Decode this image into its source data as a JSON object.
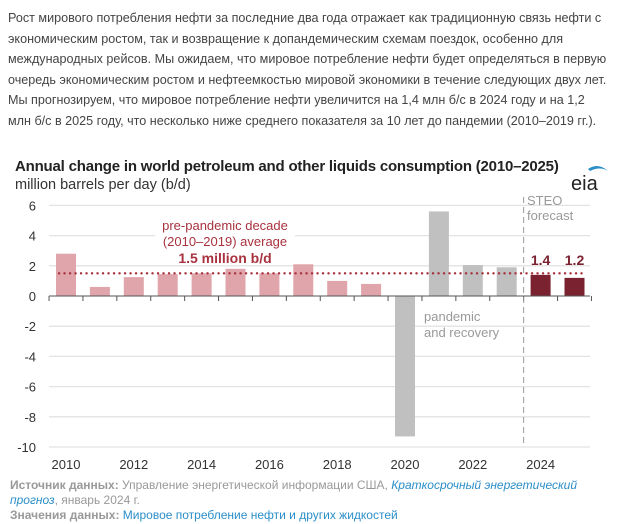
{
  "intro_text": "Рост мирового потребления нефти за последние два года отражает как традиционную связь нефти с экономическим ростом, так и возвращение к допандемическим схемам поездок, особенно для международных рейсов. Мы ожидаем, что мировое потребление нефти будет определяться в первую очередь экономическим ростом и нефтеемкостью мировой экономики в течение следующих двух лет. Мы прогнозируем, что мировое потребление нефти увеличится на 1,4 млн б/с в 2024 году и на 1,2 млн б/с в 2025 году, что несколько ниже среднего показателя за 10 лет до пандемии (2010–2019 гг.).",
  "logo_text": "eia",
  "chart_data": {
    "type": "bar",
    "title": "Annual change in world petroleum and other liquids consumption (2010–2025)",
    "ylabel": "million barrels per day (b/d)",
    "categories": [
      "2010",
      "2011",
      "2012",
      "2013",
      "2014",
      "2015",
      "2016",
      "2017",
      "2018",
      "2019",
      "2020",
      "2021",
      "2022",
      "2023",
      "2024",
      "2025"
    ],
    "values": [
      2.8,
      0.6,
      1.25,
      1.45,
      1.5,
      1.8,
      1.5,
      2.1,
      1.0,
      0.8,
      -9.3,
      5.6,
      2.05,
      1.9,
      1.4,
      1.2
    ],
    "groups": [
      "pre",
      "pre",
      "pre",
      "pre",
      "pre",
      "pre",
      "pre",
      "pre",
      "pre",
      "pre",
      "pandemic",
      "pandemic",
      "pandemic",
      "pandemic",
      "forecast",
      "forecast"
    ],
    "colors": {
      "pre": "#e0a4ab",
      "pandemic": "#c0c0c0",
      "forecast": "#7b2230",
      "average": "#a8323e",
      "annotation_gray": "#999999"
    },
    "ylim": [
      -10,
      6
    ],
    "yticks": [
      "6",
      "4",
      "2",
      "0",
      "-2",
      "-4",
      "-6",
      "-8",
      "-10"
    ],
    "xtick_labels": [
      "2010",
      "2012",
      "2014",
      "2016",
      "2018",
      "2020",
      "2022",
      "2024"
    ],
    "grid": true,
    "average_value": 1.5,
    "annotations": {
      "average_line1": "pre-pandemic decade",
      "average_line2": "(2010–2019) average",
      "average_value_label": "1.5 million b/d",
      "pandemic_line1": "pandemic",
      "pandemic_line2": "and recovery",
      "forecast_line1": "STEO",
      "forecast_line2": "forecast",
      "label_2024": "1.4",
      "label_2025": "1.2"
    }
  },
  "footer": {
    "source_label": "Источник данных:",
    "source_text": " Управление энергетической информации США, ",
    "source_link": "Краткосрочный энергетический прогноз",
    "source_date": ", январь 2024 г.",
    "values_label": "Значения данных:",
    "values_link": "Мировое потребление нефти и других жидкостей"
  }
}
